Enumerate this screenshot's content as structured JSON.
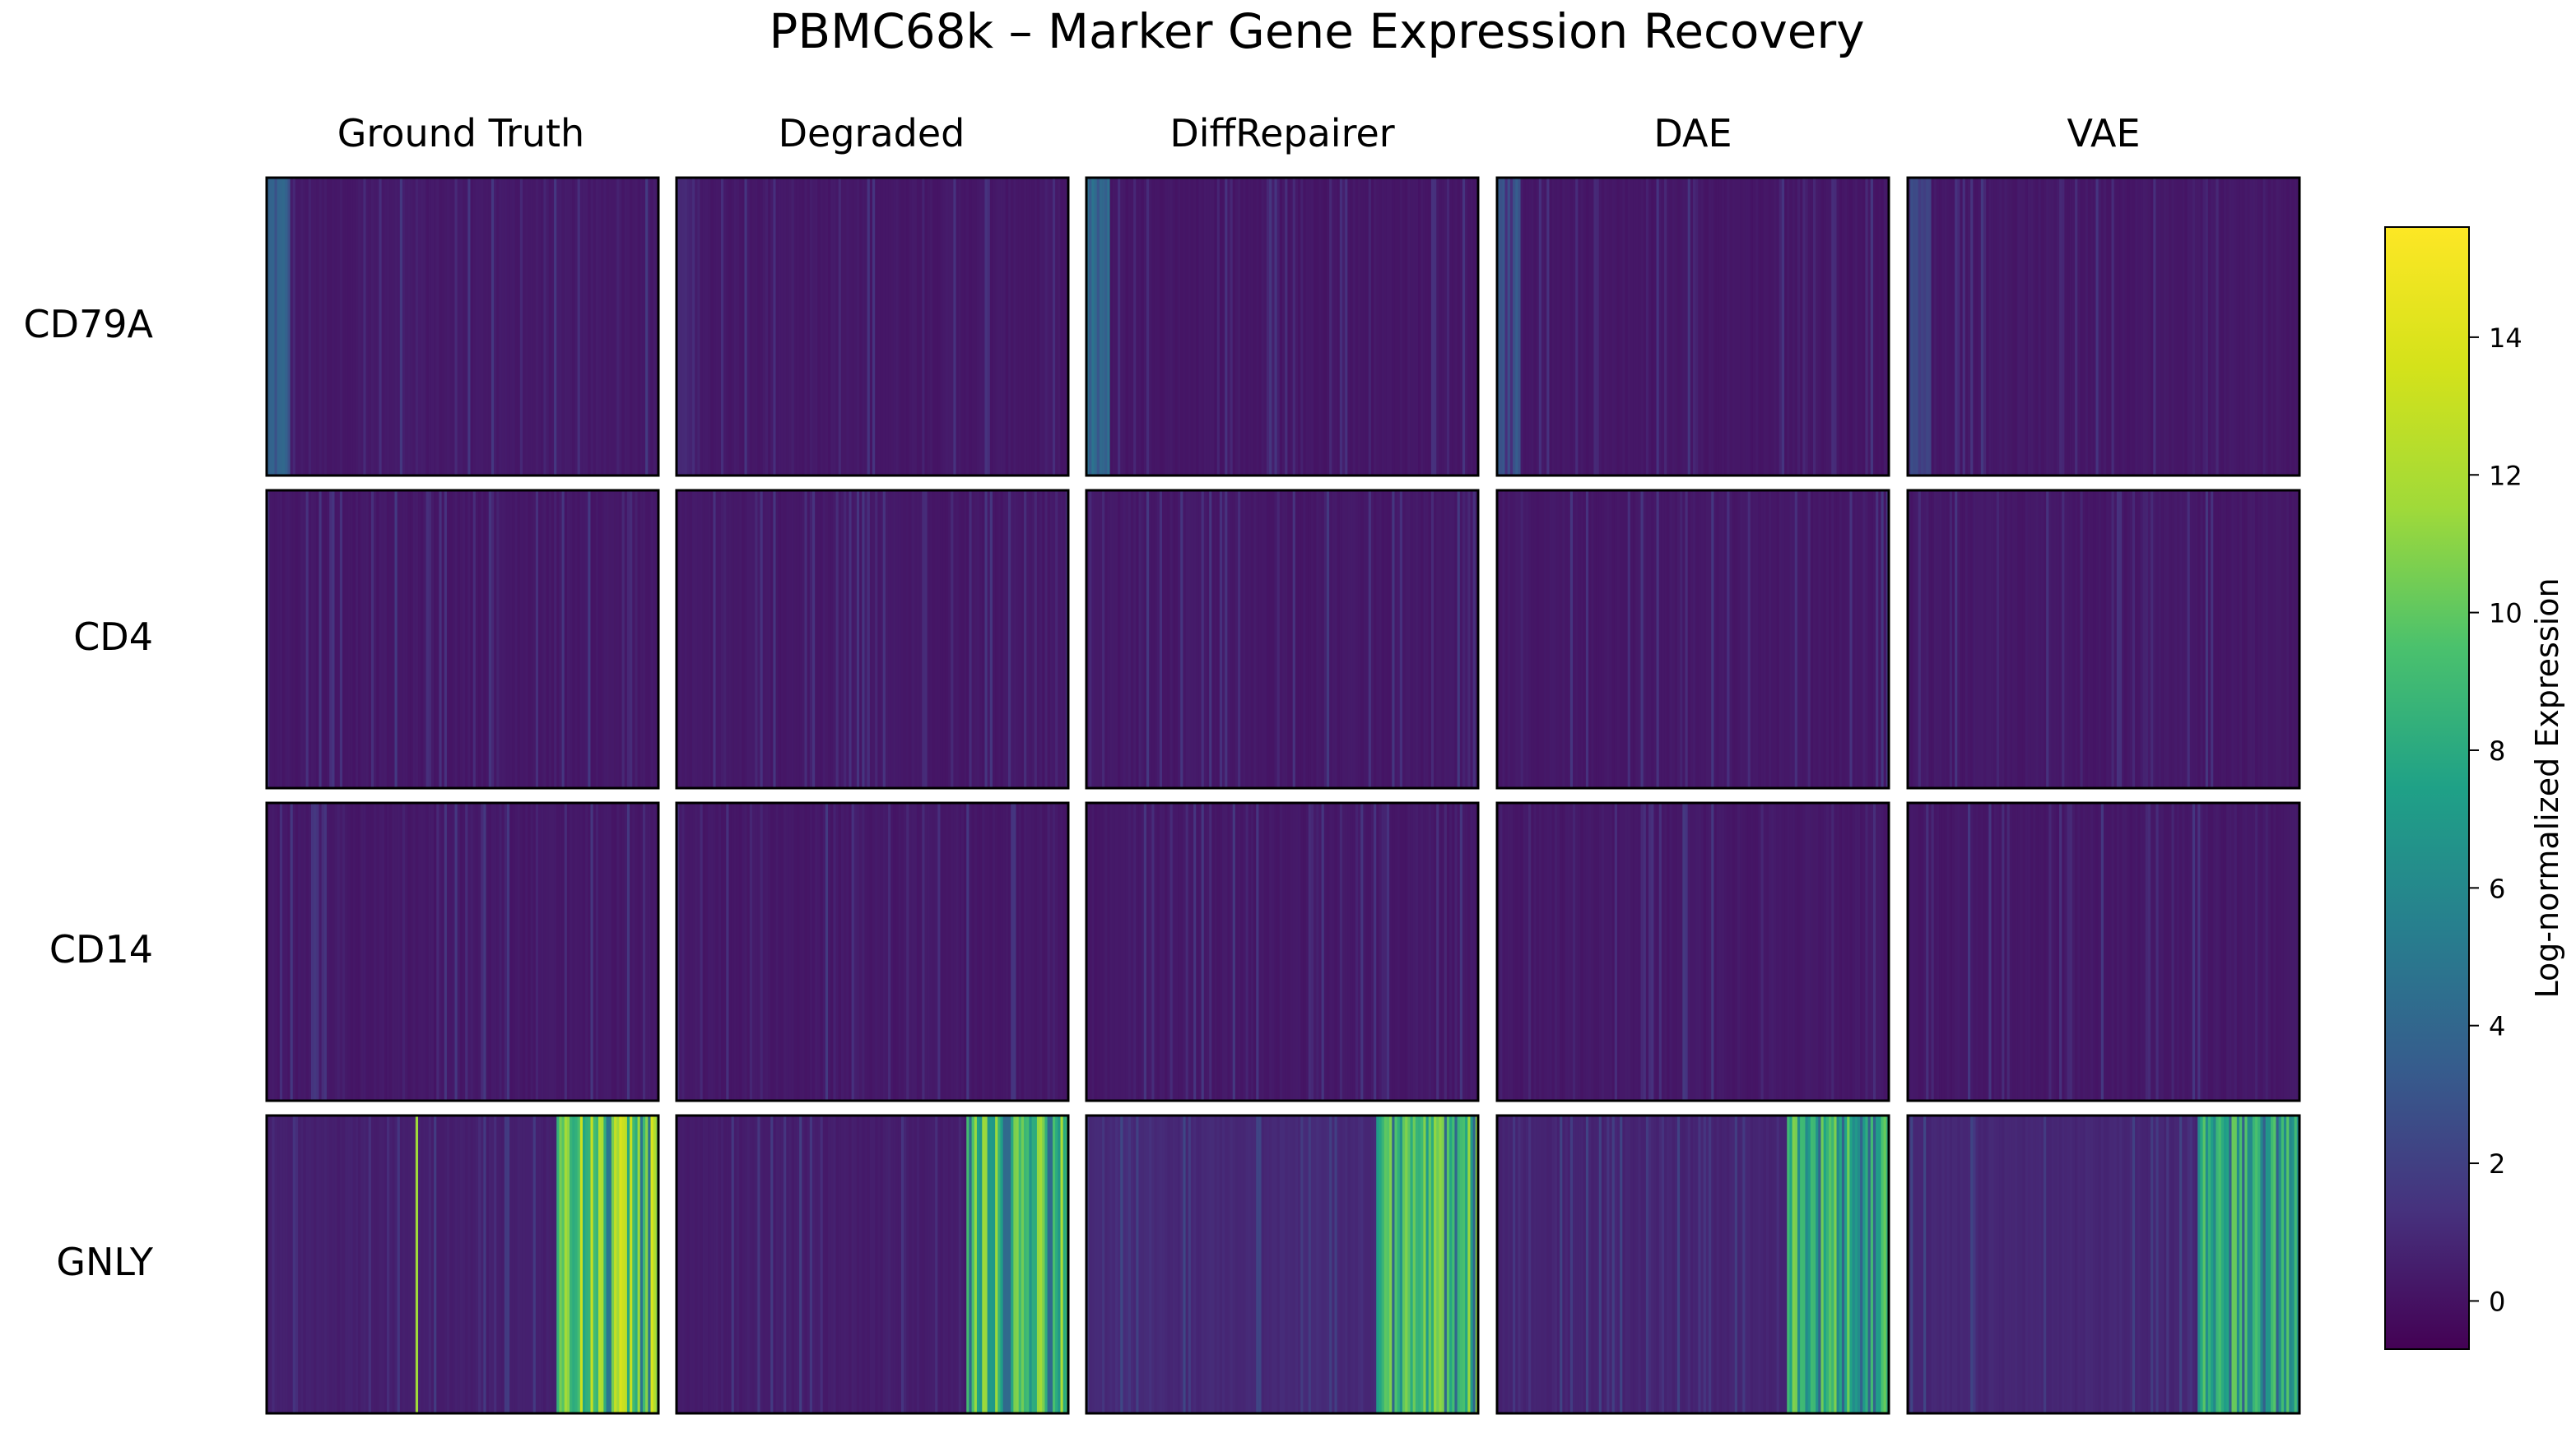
{
  "chart_data": {
    "type": "heatmap",
    "title": "PBMC68k – Marker Gene Expression Recovery",
    "columns": [
      "Ground Truth",
      "Degraded",
      "DiffRepairer",
      "DAE",
      "VAE"
    ],
    "rows": [
      "CD79A",
      "CD4",
      "CD14",
      "GNLY"
    ],
    "colorbar": {
      "label": "Log-normalized Expression",
      "colormap": "viridis",
      "vmin": -0.7,
      "vmax": 15.6,
      "ticks": [
        0,
        2,
        4,
        6,
        8,
        10,
        12,
        14
      ],
      "tick_labels": [
        "0",
        "2",
        "4",
        "6",
        "8",
        "10",
        "12",
        "14"
      ]
    },
    "x_axis_description": "cells (sorted by cell type), no tick labels",
    "panels_approximate": [
      {
        "row": "CD79A",
        "col": "Ground Truth",
        "background": 0.15,
        "high_band_fraction": [
          0,
          0.06
        ],
        "high_value": 4.5
      },
      {
        "row": "CD79A",
        "col": "Degraded",
        "background": 0.1,
        "high_band_fraction": [
          0,
          0.06
        ],
        "high_value": 1.2
      },
      {
        "row": "CD79A",
        "col": "DiffRepairer",
        "background": 0.05,
        "high_band_fraction": [
          0,
          0.06
        ],
        "high_value": 4.8
      },
      {
        "row": "CD79A",
        "col": "DAE",
        "background": 0.05,
        "high_band_fraction": [
          0,
          0.06
        ],
        "high_value": 3.5
      },
      {
        "row": "CD79A",
        "col": "VAE",
        "background": 0.1,
        "high_band_fraction": [
          0,
          0.06
        ],
        "high_value": 2.8
      },
      {
        "row": "GNLY",
        "col": "Ground Truth",
        "background": 0.4,
        "high_band_fraction": [
          0.74,
          1.0
        ],
        "high_value": 14.0
      },
      {
        "row": "GNLY",
        "col": "Degraded",
        "background": 0.3,
        "high_band_fraction": [
          0.74,
          1.0
        ],
        "high_value": 12.0
      },
      {
        "row": "GNLY",
        "col": "DiffRepairer",
        "background": 0.8,
        "high_band_fraction": [
          0.74,
          1.0
        ],
        "high_value": 11.5
      },
      {
        "row": "GNLY",
        "col": "DAE",
        "background": 0.6,
        "high_band_fraction": [
          0.74,
          1.0
        ],
        "high_value": 11.0
      },
      {
        "row": "GNLY",
        "col": "VAE",
        "background": 0.7,
        "high_band_fraction": [
          0.74,
          1.0
        ],
        "high_value": 10.5
      }
    ]
  }
}
